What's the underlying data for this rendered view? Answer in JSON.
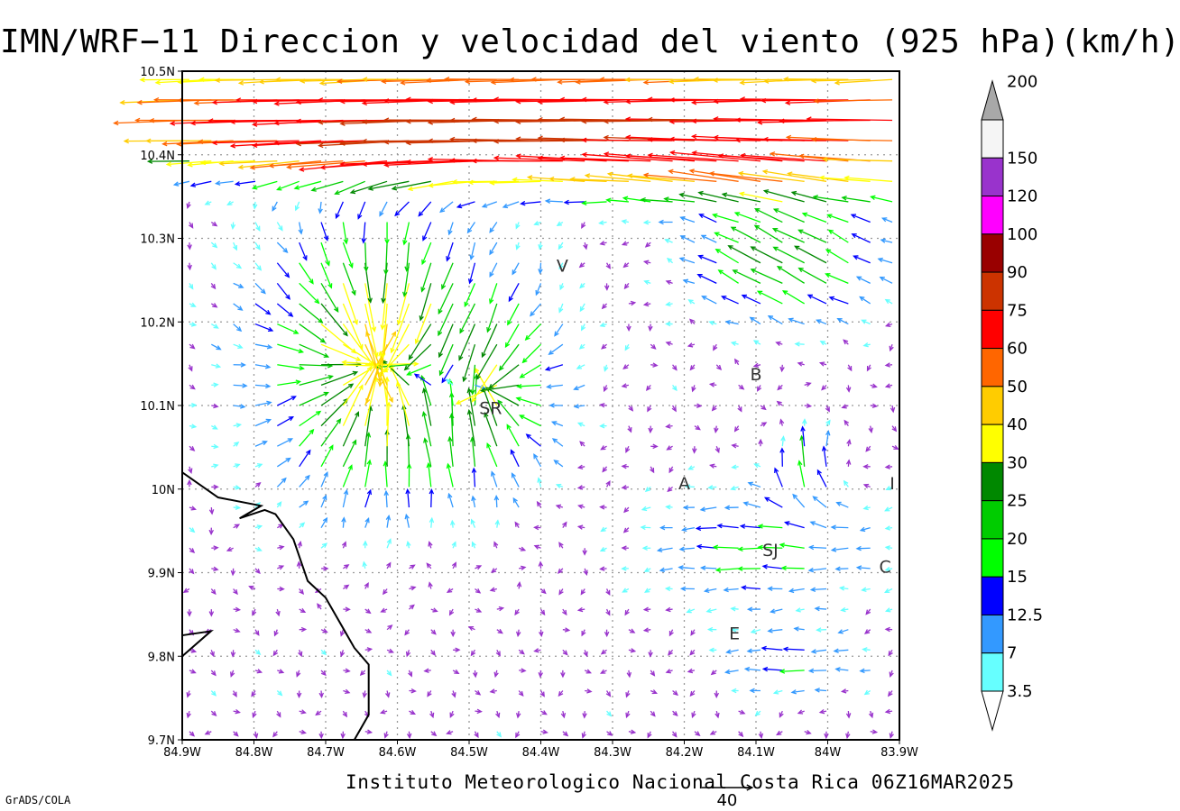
{
  "title": "IMN/WRF−11 Direccion y velocidad del viento (925 hPa)(km/h)",
  "footer": "Instituto Meteorologico Nacional Costa Rica 06Z16MAR2025",
  "software_credit": "GrADS/COLA",
  "reference_vector": {
    "label": "40",
    "speed": 40
  },
  "map": {
    "lon_range": [
      -84.9,
      -83.9
    ],
    "lat_range": [
      9.7,
      10.5
    ],
    "grid": true,
    "x_ticks": [
      {
        "lon": -84.9,
        "label": "84.9W"
      },
      {
        "lon": -84.8,
        "label": "84.8W"
      },
      {
        "lon": -84.7,
        "label": "84.7W"
      },
      {
        "lon": -84.6,
        "label": "84.6W"
      },
      {
        "lon": -84.5,
        "label": "84.5W"
      },
      {
        "lon": -84.4,
        "label": "84.4W"
      },
      {
        "lon": -84.3,
        "label": "84.3W"
      },
      {
        "lon": -84.2,
        "label": "84.2W"
      },
      {
        "lon": -84.1,
        "label": "84.1W"
      },
      {
        "lon": -84.0,
        "label": "84W"
      },
      {
        "lon": -83.9,
        "label": "83.9W"
      }
    ],
    "y_ticks": [
      {
        "lat": 10.5,
        "label": "10.5N"
      },
      {
        "lat": 10.4,
        "label": "10.4N"
      },
      {
        "lat": 10.3,
        "label": "10.3N"
      },
      {
        "lat": 10.2,
        "label": "10.2N"
      },
      {
        "lat": 10.1,
        "label": "10.1N"
      },
      {
        "lat": 10.0,
        "label": "10N"
      },
      {
        "lat": 9.9,
        "label": "9.9N"
      },
      {
        "lat": 9.8,
        "label": "9.8N"
      },
      {
        "lat": 9.7,
        "label": "9.7N"
      }
    ],
    "cities": [
      {
        "label": "V",
        "lon": -84.37,
        "lat": 10.26
      },
      {
        "label": "SR",
        "lon": -84.47,
        "lat": 10.09
      },
      {
        "label": "B",
        "lon": -84.1,
        "lat": 10.13
      },
      {
        "label": "A",
        "lon": -84.2,
        "lat": 10.0
      },
      {
        "label": "I",
        "lon": -83.91,
        "lat": 10.0
      },
      {
        "label": "SJ",
        "lon": -84.08,
        "lat": 9.92
      },
      {
        "label": "C",
        "lon": -83.92,
        "lat": 9.9
      },
      {
        "label": "E",
        "lon": -84.13,
        "lat": 9.82
      }
    ],
    "coastline": [
      [
        -84.9,
        10.02
      ],
      [
        -84.85,
        9.99
      ],
      [
        -84.79,
        9.98
      ],
      [
        -84.82,
        9.965
      ],
      [
        -84.785,
        9.975
      ],
      [
        -84.77,
        9.97
      ],
      [
        -84.745,
        9.94
      ],
      [
        -84.725,
        9.89
      ],
      [
        -84.7,
        9.87
      ],
      [
        -84.66,
        9.81
      ],
      [
        -84.64,
        9.79
      ],
      [
        -84.64,
        9.73
      ],
      [
        -84.66,
        9.7
      ]
    ],
    "coastline_2": [
      [
        -84.9,
        9.825
      ],
      [
        -84.86,
        9.83
      ],
      [
        -84.9,
        9.8
      ]
    ]
  },
  "wind_fields": [
    {
      "type": "easterly_jet",
      "lat": 10.45,
      "lon": -84.35,
      "lat_w": 0.065,
      "lon_w": 0.9,
      "u": -78,
      "v": 1
    },
    {
      "type": "easterly_jet",
      "lat": 10.4,
      "lon": -84.55,
      "lat_w": 0.03,
      "lon_w": 0.25,
      "u": -30,
      "v": 0
    },
    {
      "type": "easterly_jet",
      "lat": 10.38,
      "lon": -84.12,
      "lat_w": 0.04,
      "lon_w": 0.3,
      "u": -35,
      "v": 6
    },
    {
      "type": "convergence",
      "lat": 10.15,
      "lon": -84.63,
      "strength": 36,
      "radius": 0.11
    },
    {
      "type": "convergence",
      "lat": 10.12,
      "lon": -84.47,
      "strength": 22,
      "radius": 0.08
    },
    {
      "type": "sheared_inflow",
      "lat": 10.27,
      "lon": -84.05,
      "lat_w": 0.08,
      "lon_w": 0.14,
      "u": -24,
      "v": 14
    },
    {
      "type": "sheared_inflow",
      "lat": 9.93,
      "lon": -84.08,
      "lat_w": 0.08,
      "lon_w": 0.17,
      "u": -18,
      "v": 2
    },
    {
      "type": "sheared_inflow",
      "lat": 10.02,
      "lon": -84.03,
      "lat_w": 0.05,
      "lon_w": 0.05,
      "u": 2,
      "v": 22
    },
    {
      "type": "sheared_inflow",
      "lat": 9.79,
      "lon": -84.04,
      "lat_w": 0.04,
      "lon_w": 0.1,
      "u": -16,
      "v": 2
    }
  ],
  "legend": {
    "bins": [
      {
        "label": "200",
        "color": "#a8a8a8"
      },
      {
        "label": "150",
        "color": "#f5f5f5"
      },
      {
        "label": "120",
        "color": "#9933cc"
      },
      {
        "label": "100",
        "color": "#ff00ff"
      },
      {
        "label": "90",
        "color": "#990000"
      },
      {
        "label": "75",
        "color": "#cc3300"
      },
      {
        "label": "60",
        "color": "#ff0000"
      },
      {
        "label": "50",
        "color": "#ff6600"
      },
      {
        "label": "40",
        "color": "#ffcc00"
      },
      {
        "label": "30",
        "color": "#ffff00"
      },
      {
        "label": "25",
        "color": "#008800"
      },
      {
        "label": "20",
        "color": "#00cc00"
      },
      {
        "label": "15",
        "color": "#00ff00"
      },
      {
        "label": "12.5",
        "color": "#0000ff"
      },
      {
        "label": "7",
        "color": "#3399ff"
      },
      {
        "label": "3.5",
        "color": "#66ffff"
      }
    ]
  }
}
